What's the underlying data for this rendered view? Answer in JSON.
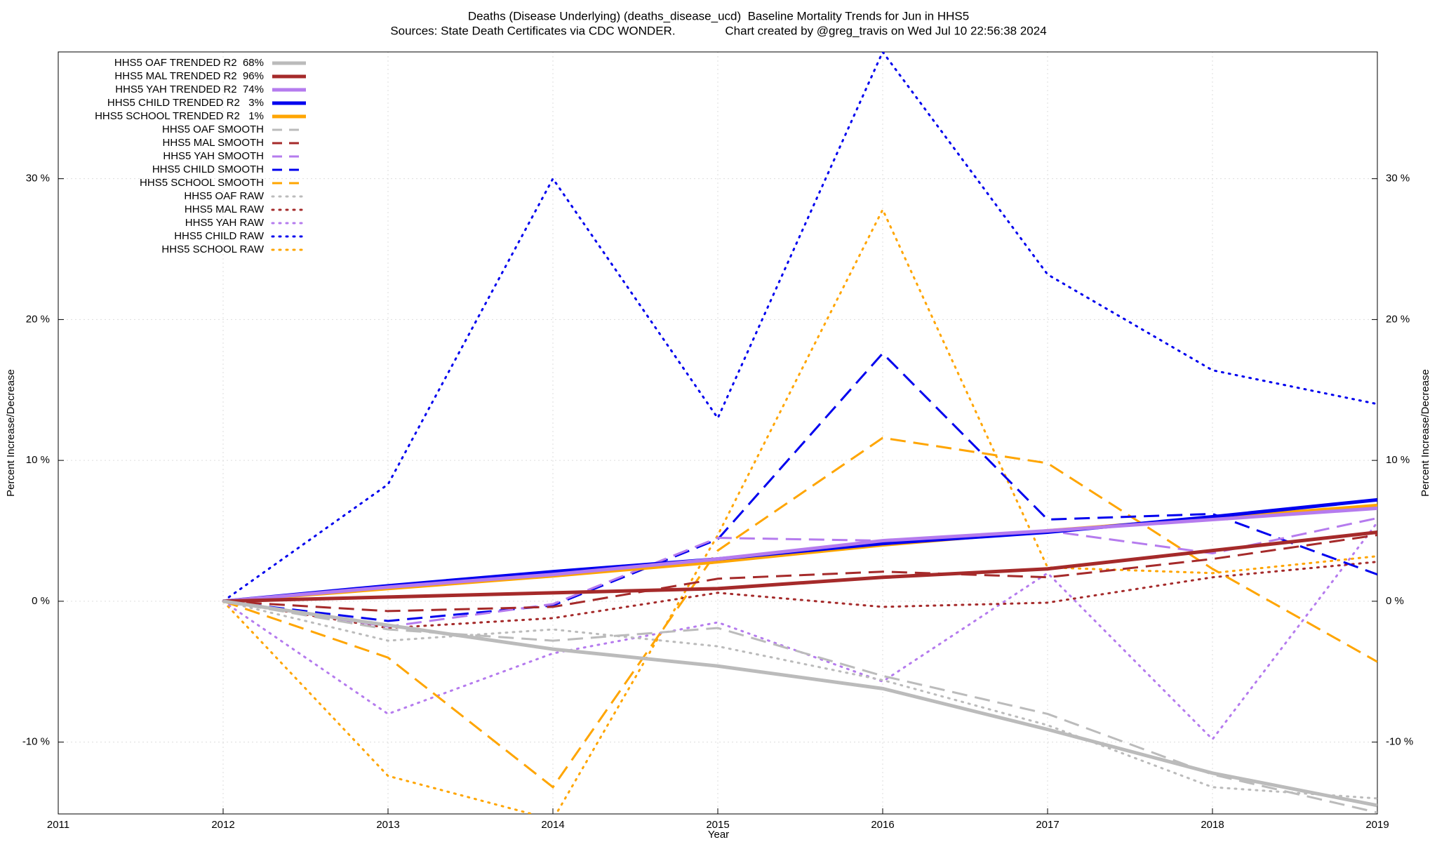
{
  "chart_data": {
    "type": "line",
    "title": "Deaths (Disease Underlying) (deaths_disease_ucd)  Baseline Mortality Trends for Jun in HHS5",
    "subtitle": "Sources: State Death Certificates via CDC WONDER.               Chart created by @greg_travis on Wed Jul 10 22:56:38 2024",
    "xlabel": "Year",
    "ylabel": "Percent Increase/Decrease",
    "y2label": "Percent Increase/Decrease",
    "x": [
      2012,
      2013,
      2014,
      2015,
      2016,
      2017,
      2018,
      2019
    ],
    "xlim": [
      2011,
      2019
    ],
    "xticks": [
      2011,
      2012,
      2013,
      2014,
      2015,
      2016,
      2017,
      2018,
      2019
    ],
    "ylim": [
      -15.1,
      39
    ],
    "yticks": [
      {
        "value": -10,
        "label": "-10 %"
      },
      {
        "value": 0,
        "label": "0 %"
      },
      {
        "value": 10,
        "label": "10 %"
      },
      {
        "value": 20,
        "label": "20 %"
      },
      {
        "value": 30,
        "label": "30 %"
      }
    ],
    "grid": true,
    "legend": "top-left",
    "series": [
      {
        "name": "HHS5 OAF TRENDED R2  68%",
        "color": "#bbbbbb",
        "dash": "solid",
        "values": [
          0,
          -1.7,
          -3.4,
          -4.6,
          -6.2,
          -9.1,
          -12.2,
          -14.5
        ]
      },
      {
        "name": "HHS5 MAL TRENDED R2  96%",
        "color": "#a52a2a",
        "dash": "solid",
        "values": [
          0,
          0.3,
          0.6,
          0.9,
          1.7,
          2.3,
          3.6,
          4.9
        ]
      },
      {
        "name": "HHS5 YAH TRENDED R2  74%",
        "color": "#b57bee",
        "dash": "solid",
        "values": [
          0,
          1.0,
          1.9,
          3.0,
          4.3,
          5.0,
          5.8,
          6.6
        ]
      },
      {
        "name": "HHS5 CHILD TRENDED R2   3%",
        "color": "#0000ee",
        "dash": "solid",
        "values": [
          0,
          1.1,
          2.1,
          3.0,
          4.1,
          4.9,
          6.0,
          7.2
        ]
      },
      {
        "name": "HHS5 SCHOOL TRENDED R2   1%",
        "color": "#ffa500",
        "dash": "solid",
        "values": [
          0,
          0.9,
          1.8,
          2.8,
          4.0,
          5.0,
          5.9,
          6.8
        ]
      },
      {
        "name": "HHS5 OAF SMOOTH",
        "color": "#bbbbbb",
        "dash": "dashed",
        "values": [
          0,
          -2.0,
          -2.8,
          -1.9,
          -5.3,
          -8.0,
          -12.3,
          -15.0
        ]
      },
      {
        "name": "HHS5 MAL SMOOTH",
        "color": "#a52a2a",
        "dash": "dashed",
        "values": [
          0,
          -0.7,
          -0.4,
          1.6,
          2.1,
          1.7,
          3.0,
          4.7
        ]
      },
      {
        "name": "HHS5 YAH SMOOTH",
        "color": "#b57bee",
        "dash": "dashed",
        "values": [
          0,
          -1.8,
          -0.2,
          4.5,
          4.3,
          5.0,
          3.4,
          5.9
        ]
      },
      {
        "name": "HHS5 CHILD SMOOTH",
        "color": "#0000ee",
        "dash": "dashed",
        "values": [
          0,
          -1.4,
          -0.3,
          4.4,
          17.6,
          5.8,
          6.2,
          1.9
        ]
      },
      {
        "name": "HHS5 SCHOOL SMOOTH",
        "color": "#ffa500",
        "dash": "dashed",
        "values": [
          0,
          -4.0,
          -13.2,
          3.6,
          11.6,
          9.8,
          2.3,
          -4.3
        ]
      },
      {
        "name": "HHS5 OAF RAW",
        "color": "#bbbbbb",
        "dash": "dotted",
        "values": [
          0,
          -2.8,
          -2.0,
          -3.2,
          -5.6,
          -8.8,
          -13.2,
          -14.0
        ]
      },
      {
        "name": "HHS5 MAL RAW",
        "color": "#a52a2a",
        "dash": "dotted",
        "values": [
          0,
          -1.9,
          -1.2,
          0.6,
          -0.4,
          -0.1,
          1.7,
          2.8
        ]
      },
      {
        "name": "HHS5 YAH RAW",
        "color": "#b57bee",
        "dash": "dotted",
        "values": [
          0,
          -8.0,
          -3.7,
          -1.5,
          -5.7,
          2.0,
          -9.8,
          5.6
        ]
      },
      {
        "name": "HHS5 CHILD RAW",
        "color": "#0000ee",
        "dash": "dotted",
        "values": [
          0,
          8.3,
          30.0,
          13.0,
          39.0,
          23.2,
          16.4,
          14.0
        ]
      },
      {
        "name": "HHS5 SCHOOL RAW",
        "color": "#ffa500",
        "dash": "dotted",
        "values": [
          0,
          -12.4,
          -15.5,
          4.7,
          27.8,
          2.4,
          2.0,
          3.2
        ]
      }
    ]
  }
}
